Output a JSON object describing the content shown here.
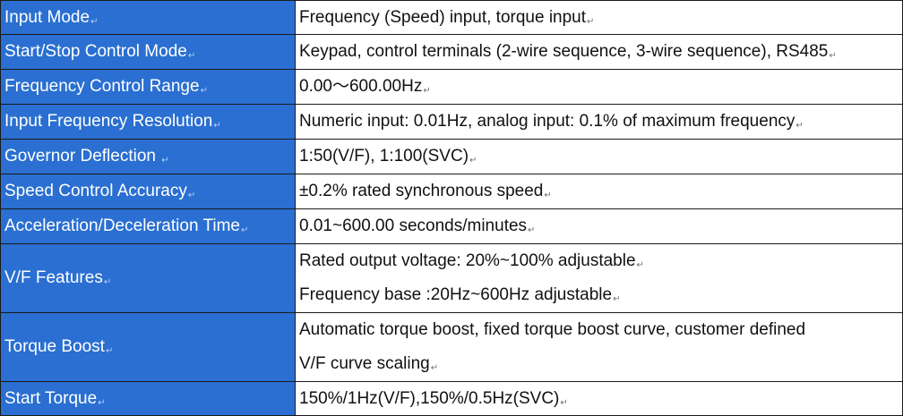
{
  "colors": {
    "label_background": "#2a6fd1",
    "label_text": "#ffffff",
    "value_background": "#ffffff",
    "border": "#1a1a1a"
  },
  "paragraph_mark": "↵",
  "rows": [
    {
      "label": "Input Mode",
      "values": [
        "Frequency (Speed) input, torque input"
      ]
    },
    {
      "label": "Start/Stop Control Mode",
      "values": [
        "Keypad, control terminals (2-wire sequence, 3-wire sequence), RS485"
      ]
    },
    {
      "label": "Frequency Control Range",
      "values": [
        "0.00～600.00Hz"
      ]
    },
    {
      "label": "Input Frequency Resolution",
      "values": [
        "Numeric input: 0.01Hz, analog input: 0.1% of maximum frequency"
      ]
    },
    {
      "label": "Governor Deflection",
      "values": [
        "1:50(V/F), 1:100(SVC)"
      ]
    },
    {
      "label": "Speed Control Accuracy",
      "values": [
        "±0.2% rated synchronous speed"
      ]
    },
    {
      "label": "Acceleration/Deceleration Time",
      "values": [
        "0.01~600.00 seconds/minutes"
      ]
    },
    {
      "label": "V/F Features",
      "values": [
        "Rated output voltage: 20%~100% adjustable",
        "Frequency base :20Hz~600Hz adjustable"
      ]
    },
    {
      "label": "Torque Boost",
      "values": [
        "Automatic torque boost, fixed torque boost curve, customer defined",
        "V/F curve scaling"
      ]
    },
    {
      "label": "Start Torque",
      "values": [
        "150%/1Hz(V/F),150%/0.5Hz(SVC)"
      ]
    }
  ]
}
